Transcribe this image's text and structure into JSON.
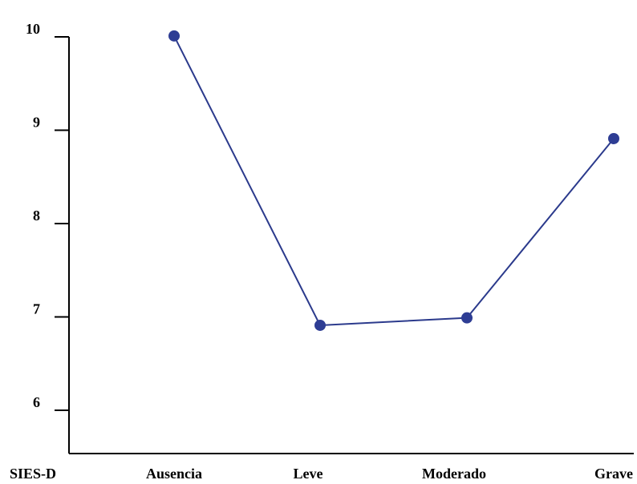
{
  "chart_data": {
    "type": "line",
    "xlabel": "SIES-D",
    "ylabel": "",
    "categories": [
      "Ausencia",
      "Leve",
      "Moderado",
      "Grave"
    ],
    "series": [
      {
        "values": [
          10.01,
          6.91,
          6.99,
          8.91
        ]
      }
    ],
    "ylim": [
      5.5,
      10.05
    ],
    "yticks": [
      {
        "value": 10,
        "label": "10"
      },
      {
        "value": 9,
        "label": "9"
      },
      {
        "value": 8,
        "label": "8"
      },
      {
        "value": 7,
        "label": "7"
      },
      {
        "value": 6,
        "label": "6"
      }
    ],
    "grid": false,
    "colors": {
      "line": "#2b3a8c",
      "marker": "#2e3d94",
      "axis": "#000000"
    }
  }
}
